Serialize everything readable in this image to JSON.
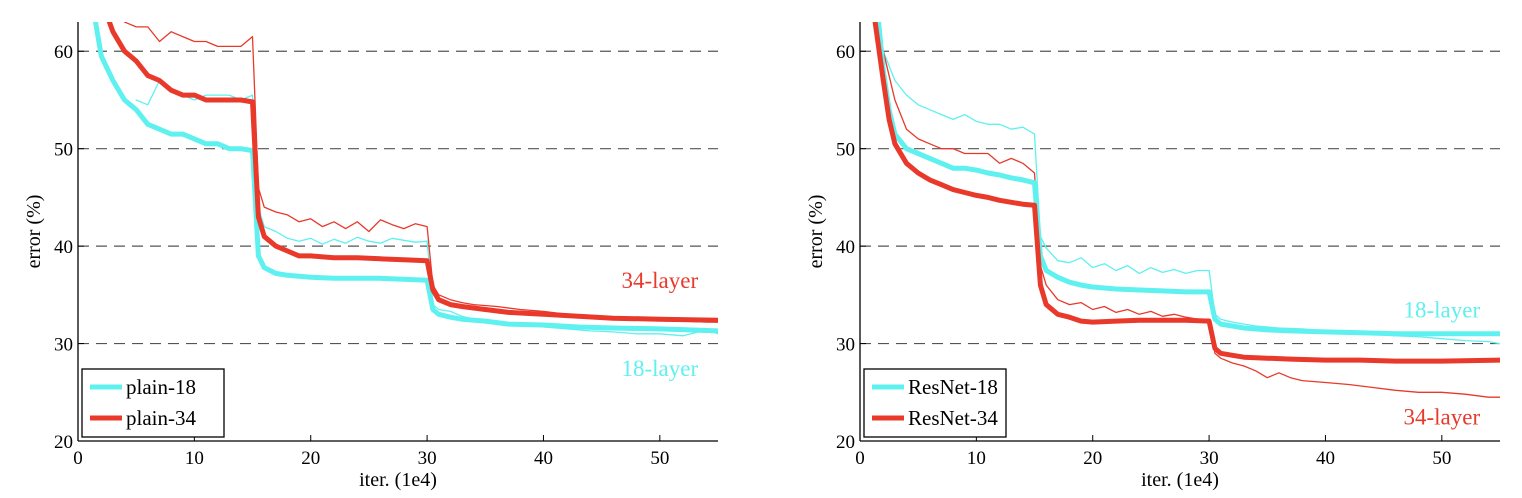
{
  "chart_data": [
    {
      "type": "line",
      "panel": "left",
      "xlabel": "iter. (1e4)",
      "ylabel": "error (%)",
      "xlim": [
        0,
        55
      ],
      "ylim": [
        20,
        63
      ],
      "x_ticks": [
        0,
        10,
        20,
        30,
        40,
        50
      ],
      "y_ticks": [
        20,
        30,
        40,
        50,
        60
      ],
      "grid": "dashed horizontal lines at y = 30, 40, 50, 60",
      "legend_position": "bottom-left",
      "legend": [
        "plain-18",
        "plain-34"
      ],
      "annotations": [
        {
          "text": "34-layer",
          "color": "#e8392b",
          "x": 50,
          "y": 36.5
        },
        {
          "text": "18-layer",
          "color": "#5ff0f0",
          "x": 50,
          "y": 27.5
        }
      ],
      "series": [
        {
          "name": "plain-18",
          "role": "validation (thick)",
          "color": "#5ff0f0",
          "x": [
            1.5,
            2,
            3,
            4,
            5,
            6,
            7,
            8,
            9,
            10,
            11,
            12,
            13,
            14,
            15,
            15.5,
            16,
            17,
            18,
            19,
            20,
            22,
            24,
            26,
            28,
            30,
            30.5,
            31,
            32,
            33,
            35,
            37,
            40,
            43,
            46,
            50,
            55
          ],
          "y": [
            63,
            59.5,
            57,
            55,
            54,
            52.5,
            52,
            51.5,
            51.5,
            51,
            50.5,
            50.5,
            50,
            50,
            49.8,
            39,
            37.8,
            37.2,
            37,
            36.9,
            36.8,
            36.7,
            36.7,
            36.7,
            36.6,
            36.5,
            33.5,
            33,
            32.7,
            32.5,
            32.3,
            32,
            31.9,
            31.7,
            31.6,
            31.5,
            31.3
          ]
        },
        {
          "name": "plain-34",
          "role": "validation (thick)",
          "color": "#e8392b",
          "x": [
            2.7,
            3,
            4,
            5,
            6,
            7,
            8,
            9,
            10,
            11,
            12,
            13,
            14,
            15,
            15.5,
            16,
            17,
            18,
            19,
            20,
            22,
            24,
            26,
            28,
            30,
            30.5,
            31,
            32,
            33,
            35,
            37,
            40,
            43,
            46,
            50,
            55
          ],
          "y": [
            63,
            62,
            60,
            59,
            57.5,
            57,
            56,
            55.5,
            55.5,
            55,
            55,
            55,
            55,
            54.8,
            43,
            41,
            40,
            39.5,
            39,
            39,
            38.8,
            38.8,
            38.7,
            38.6,
            38.5,
            35.5,
            34.5,
            34,
            33.8,
            33.5,
            33.2,
            33,
            32.8,
            32.6,
            32.5,
            32.4
          ]
        },
        {
          "name": "plain-18 (train)",
          "role": "training (thin)",
          "color": "#5ff0f0",
          "x": [
            5,
            6,
            7,
            8,
            9,
            10,
            11,
            12,
            13,
            14,
            15,
            15.5,
            16,
            17,
            18,
            19,
            20,
            21,
            22,
            23,
            24,
            25,
            26,
            27,
            28,
            29,
            30,
            30.5,
            31,
            32,
            33,
            34,
            36,
            38,
            40,
            42,
            44,
            46,
            48,
            50,
            52,
            54,
            55
          ],
          "y": [
            55,
            54.5,
            57,
            56,
            55.5,
            55,
            55.5,
            55.5,
            55.5,
            55,
            55.5,
            44,
            42,
            41.5,
            40.8,
            40.5,
            40.8,
            40.2,
            40.7,
            40.3,
            40.9,
            40.5,
            40.3,
            40.8,
            40.6,
            40.4,
            40.5,
            34,
            33.5,
            33.3,
            32.8,
            32.5,
            32.2,
            32,
            31.7,
            31.5,
            31.3,
            31.2,
            31,
            31,
            30.8,
            31.4,
            31
          ]
        },
        {
          "name": "plain-34 (train)",
          "role": "training (thin)",
          "color": "#e8392b",
          "x": [
            4,
            5,
            6,
            7,
            8,
            9,
            10,
            11,
            12,
            13,
            14,
            15,
            15.5,
            16,
            17,
            18,
            19,
            20,
            21,
            22,
            23,
            24,
            25,
            26,
            27,
            28,
            29,
            30,
            30.5,
            31,
            32,
            33,
            34,
            36,
            38,
            40,
            42,
            44,
            46,
            48,
            50,
            52,
            54,
            55
          ],
          "y": [
            63,
            62.5,
            62.5,
            61,
            62,
            61.5,
            61,
            61,
            60.5,
            60.5,
            60.5,
            61.5,
            46,
            44,
            43.5,
            43.2,
            42.5,
            42.8,
            42,
            42.5,
            41.8,
            42.5,
            41.5,
            42.7,
            42.2,
            41.8,
            42.3,
            42,
            36,
            35,
            34.5,
            34.2,
            34,
            33.8,
            33.5,
            33.3,
            33,
            32.8,
            32.7,
            32.6,
            32.5,
            32.3,
            32.2,
            32.2
          ]
        }
      ]
    },
    {
      "type": "line",
      "panel": "right",
      "xlabel": "iter. (1e4)",
      "ylabel": "error (%)",
      "xlim": [
        0,
        55
      ],
      "ylim": [
        20,
        63
      ],
      "x_ticks": [
        0,
        10,
        20,
        30,
        40,
        50
      ],
      "y_ticks": [
        20,
        30,
        40,
        50,
        60
      ],
      "grid": "dashed horizontal lines at y = 30, 40, 50, 60",
      "legend_position": "bottom-left",
      "legend": [
        "ResNet-18",
        "ResNet-34"
      ],
      "annotations": [
        {
          "text": "18-layer",
          "color": "#5ff0f0",
          "x": 50,
          "y": 33.5
        },
        {
          "text": "34-layer",
          "color": "#e8392b",
          "x": 50,
          "y": 22.5
        }
      ],
      "series": [
        {
          "name": "ResNet-18",
          "role": "validation (thick)",
          "color": "#5ff0f0",
          "x": [
            1.6,
            2,
            2.5,
            3,
            4,
            5,
            6,
            7,
            8,
            9,
            10,
            11,
            12,
            13,
            14,
            15,
            15.5,
            16,
            17,
            18,
            19,
            20,
            22,
            24,
            26,
            28,
            30,
            30.5,
            31,
            32,
            33,
            35,
            37,
            40,
            43,
            46,
            50,
            55
          ],
          "y": [
            63,
            58,
            54,
            51.5,
            50,
            49.5,
            49,
            48.5,
            48,
            48,
            47.8,
            47.5,
            47.3,
            47,
            46.8,
            46.5,
            39,
            37.5,
            36.8,
            36.3,
            36,
            35.8,
            35.6,
            35.5,
            35.4,
            35.3,
            35.3,
            32.5,
            32,
            31.8,
            31.6,
            31.4,
            31.3,
            31.2,
            31.1,
            31,
            31,
            31
          ]
        },
        {
          "name": "ResNet-34",
          "role": "validation (thick)",
          "color": "#e8392b",
          "x": [
            1.3,
            2,
            2.5,
            3,
            4,
            5,
            6,
            7,
            8,
            9,
            10,
            11,
            12,
            13,
            14,
            15,
            15.5,
            16,
            17,
            18,
            19,
            20,
            22,
            24,
            26,
            28,
            30,
            30.5,
            31,
            32,
            33,
            35,
            37,
            40,
            43,
            46,
            50,
            55
          ],
          "y": [
            63,
            57,
            53,
            50.5,
            48.5,
            47.5,
            46.8,
            46.3,
            45.8,
            45.5,
            45.2,
            45,
            44.7,
            44.5,
            44.3,
            44.2,
            36,
            34,
            33,
            32.7,
            32.3,
            32.2,
            32.3,
            32.4,
            32.4,
            32.4,
            32.3,
            29.5,
            29,
            28.8,
            28.6,
            28.5,
            28.4,
            28.3,
            28.3,
            28.2,
            28.2,
            28.3
          ]
        },
        {
          "name": "ResNet-18 (train)",
          "role": "training (thin)",
          "color": "#5ff0f0",
          "x": [
            1.5,
            2,
            3,
            4,
            5,
            6,
            7,
            8,
            9,
            10,
            11,
            12,
            13,
            14,
            15,
            15.5,
            16,
            17,
            18,
            19,
            20,
            21,
            22,
            23,
            24,
            25,
            26,
            27,
            28,
            29,
            30,
            30.5,
            31,
            32,
            33,
            34,
            36,
            38,
            40,
            42,
            44,
            46,
            48,
            50,
            52,
            54,
            55
          ],
          "y": [
            63,
            60,
            57,
            55.5,
            54.5,
            54,
            53.5,
            53,
            53.5,
            52.8,
            52.5,
            52.5,
            52,
            52.2,
            51.5,
            41,
            39.8,
            38.5,
            38.3,
            38.8,
            37.8,
            38.2,
            37.5,
            38,
            37.2,
            37.8,
            37.3,
            37.6,
            37.2,
            37.5,
            37.5,
            33,
            32.5,
            32.2,
            32,
            31.8,
            31.6,
            31.5,
            31.3,
            31.2,
            31,
            30.8,
            30.7,
            30.5,
            30.3,
            30.2,
            30
          ]
        },
        {
          "name": "ResNet-34 (train)",
          "role": "training (thin)",
          "color": "#e8392b",
          "x": [
            1.2,
            2,
            3,
            4,
            5,
            6,
            7,
            8,
            9,
            10,
            11,
            12,
            13,
            14,
            15,
            15.5,
            16,
            17,
            18,
            19,
            20,
            21,
            22,
            23,
            24,
            25,
            26,
            27,
            28,
            29,
            30,
            30.5,
            31,
            32,
            33,
            34,
            35,
            36,
            37,
            38,
            40,
            42,
            44,
            46,
            48,
            50,
            52,
            54,
            55
          ],
          "y": [
            63,
            60,
            55,
            52,
            51,
            50.5,
            50,
            50,
            49.5,
            49.5,
            49.5,
            48.5,
            49,
            48.5,
            47.5,
            38,
            36,
            34.5,
            34,
            34.2,
            33.5,
            33.8,
            33.2,
            33.5,
            33,
            33.3,
            32.8,
            33,
            32.7,
            32.5,
            32.5,
            29,
            28.5,
            28,
            27.7,
            27.2,
            26.5,
            27,
            26.5,
            26.2,
            26,
            25.8,
            25.5,
            25.2,
            25,
            25,
            24.8,
            24.5,
            24.5
          ]
        }
      ]
    }
  ]
}
